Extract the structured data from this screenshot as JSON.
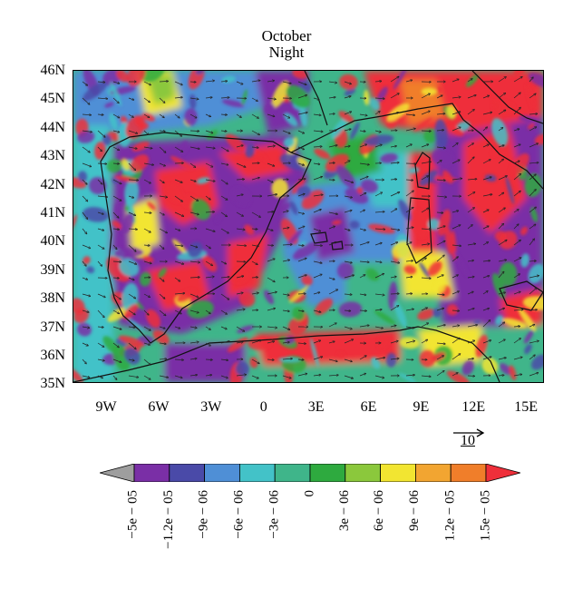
{
  "title": {
    "line1": "October",
    "line2": "Night"
  },
  "map": {
    "region": "Iberian Peninsula and Western Mediterranean",
    "lat_labels": [
      "46N",
      "45N",
      "44N",
      "43N",
      "42N",
      "41N",
      "40N",
      "39N",
      "38N",
      "37N",
      "36N",
      "35N"
    ],
    "lon_labels": [
      "9W",
      "6W",
      "3W",
      "0",
      "3E",
      "6E",
      "9E",
      "12E",
      "15E"
    ],
    "lat_range": [
      35,
      46
    ],
    "lon_range": [
      -11.7,
      16.3
    ],
    "field": "shaded scalar field with wind vectors and coastlines"
  },
  "vector_reference": {
    "label": "10"
  },
  "colorbar": {
    "colors": [
      "#9e9e9e",
      "#7a2fa6",
      "#4a4aa8",
      "#4f8fd6",
      "#43c2c8",
      "#3fb58a",
      "#2eaa3f",
      "#8bc83c",
      "#f2e531",
      "#f2a531",
      "#f07e2a",
      "#ef2f3a"
    ],
    "labels": [
      "−5e − 05",
      "−1.2e − 05",
      "−9e − 06",
      "−6e − 06",
      "−3e − 06",
      "0",
      "3e − 06",
      "6e − 06",
      "9e − 06",
      "1.2e − 05",
      "1.5e − 05"
    ]
  }
}
